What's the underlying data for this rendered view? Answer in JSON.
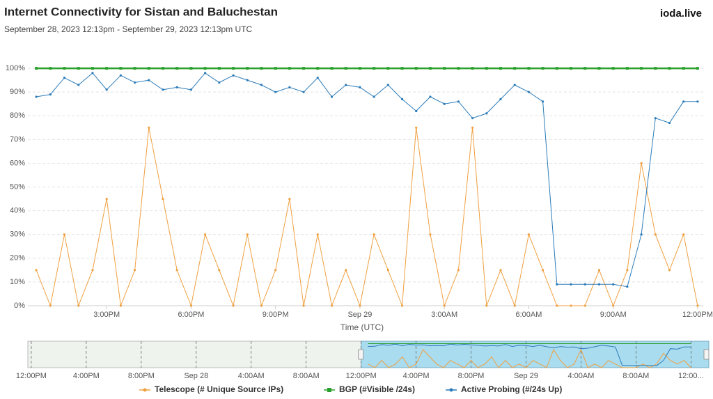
{
  "title": "Internet Connectivity for Sistan and Baluchestan",
  "subtitle": "September 28, 2023 12:13pm - September 29, 2023 12:13pm UTC",
  "brand": "ioda.live",
  "chart_data": {
    "type": "line",
    "x_label": "Time (UTC)",
    "x": [
      36.5,
      37,
      37.5,
      38,
      38.5,
      39,
      39.5,
      40,
      40.5,
      41,
      41.5,
      42,
      42.5,
      43,
      43.5,
      44,
      44.5,
      45,
      45.5,
      46,
      46.5,
      47,
      47.5,
      48,
      48.5,
      49,
      49.5,
      50,
      50.5,
      51,
      51.5,
      52,
      52.5,
      53,
      53.5,
      54,
      54.5,
      55,
      55.5,
      56,
      56.5,
      57,
      57.5,
      58,
      58.5,
      59,
      59.5,
      60
    ],
    "xlim": [
      36.2,
      60.2
    ],
    "xticks": [
      {
        "value": 39,
        "label": "3:00PM"
      },
      {
        "value": 42,
        "label": "6:00PM"
      },
      {
        "value": 45,
        "label": "9:00PM"
      },
      {
        "value": 48,
        "label": "Sep 29"
      },
      {
        "value": 51,
        "label": "3:00AM"
      },
      {
        "value": 54,
        "label": "6:00AM"
      },
      {
        "value": 57,
        "label": "9:00AM"
      },
      {
        "value": 60,
        "label": "12:00PM"
      }
    ],
    "ylim": [
      0,
      110
    ],
    "yticks": [
      {
        "value": 0,
        "label": "0%"
      },
      {
        "value": 10,
        "label": "10%"
      },
      {
        "value": 20,
        "label": "20%"
      },
      {
        "value": 30,
        "label": "30%"
      },
      {
        "value": 40,
        "label": "40%"
      },
      {
        "value": 50,
        "label": "50%"
      },
      {
        "value": 60,
        "label": "60%"
      },
      {
        "value": 70,
        "label": "70%"
      },
      {
        "value": 80,
        "label": "80%"
      },
      {
        "value": 90,
        "label": "90%"
      },
      {
        "value": 100,
        "label": "100%"
      }
    ],
    "grid": true,
    "series": [
      {
        "name": "Telescope (# Unique Source IPs)",
        "color": "#f0a040",
        "marker": "circle",
        "values": [
          15,
          0,
          30,
          0,
          15,
          45,
          0,
          15,
          75,
          45,
          15,
          0,
          30,
          15,
          0,
          30,
          0,
          15,
          45,
          0,
          30,
          0,
          15,
          0,
          30,
          15,
          0,
          75,
          30,
          0,
          15,
          75,
          0,
          15,
          0,
          30,
          15,
          0,
          0,
          0,
          15,
          0,
          15,
          60,
          30,
          15,
          30,
          0
        ]
      },
      {
        "name": "BGP (#Visible /24s)",
        "color": "#2ca02c",
        "marker": "square",
        "values": [
          100,
          100,
          100,
          100,
          100,
          100,
          100,
          100,
          100,
          100,
          100,
          100,
          100,
          100,
          100,
          100,
          100,
          100,
          100,
          100,
          100,
          100,
          100,
          100,
          100,
          100,
          100,
          100,
          100,
          100,
          100,
          100,
          100,
          100,
          100,
          100,
          100,
          100,
          100,
          100,
          100,
          100,
          100,
          100,
          100,
          100,
          100,
          100
        ]
      },
      {
        "name": "Active Probing (#/24s Up)",
        "color": "#2b7bb9",
        "marker": "circle",
        "values": [
          88,
          89,
          96,
          93,
          98,
          91,
          97,
          94,
          95,
          91,
          92,
          91,
          98,
          94,
          97,
          95,
          93,
          90,
          92,
          90,
          96,
          88,
          93,
          92,
          88,
          93,
          87,
          82,
          88,
          85,
          86,
          79,
          81,
          87,
          93,
          90,
          86,
          9,
          9,
          9,
          9,
          9,
          8,
          30,
          79,
          77,
          86,
          86
        ]
      }
    ]
  },
  "navigator": {
    "xlim": [
      11.75,
      61.3
    ],
    "selection": [
      36,
      61.3
    ],
    "xticks": [
      {
        "value": 12,
        "label": "12:00PM"
      },
      {
        "value": 16,
        "label": "4:00PM"
      },
      {
        "value": 20,
        "label": "8:00PM"
      },
      {
        "value": 24,
        "label": "Sep 28"
      },
      {
        "value": 28,
        "label": "4:00AM"
      },
      {
        "value": 32,
        "label": "8:00AM"
      },
      {
        "value": 36,
        "label": "12:00PM"
      },
      {
        "value": 40,
        "label": "4:00PM"
      },
      {
        "value": 44,
        "label": "8:00PM"
      },
      {
        "value": 48,
        "label": "Sep 29"
      },
      {
        "value": 52,
        "label": "4:00AM"
      },
      {
        "value": 56,
        "label": "8:00AM"
      },
      {
        "value": 60,
        "label": "12:00..."
      }
    ]
  }
}
